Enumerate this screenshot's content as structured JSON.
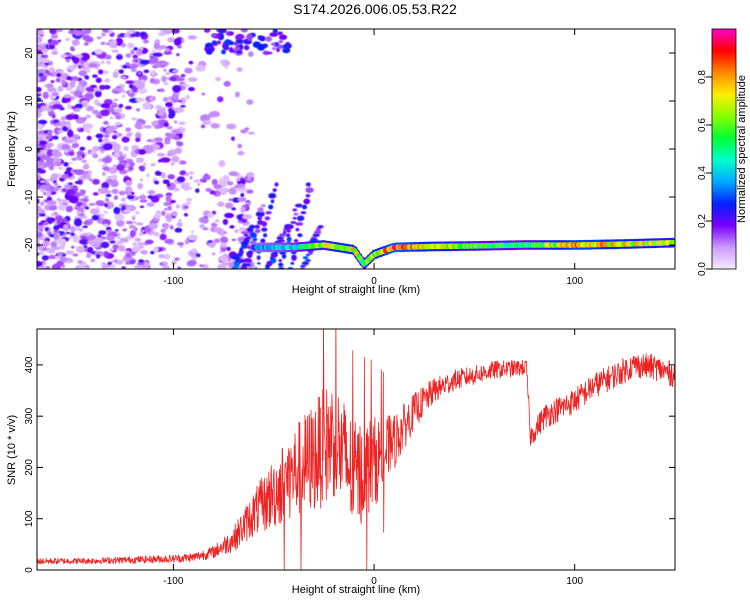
{
  "title": "S174.2026.006.05.53.R22",
  "chart_data": [
    {
      "type": "heatmap",
      "xlabel": "Height of straight line (km)",
      "ylabel": "Frequency (Hz)",
      "xlim": [
        -168,
        150
      ],
      "ylim": [
        -25,
        25
      ],
      "x_ticks": [
        -100,
        0,
        100
      ],
      "x_tick_labels": [
        "-100",
        "0",
        "100"
      ],
      "y_ticks": [
        -20,
        -10,
        0,
        10,
        20
      ],
      "y_tick_labels": [
        "-20",
        "-10",
        "0",
        "10",
        "20"
      ],
      "colorbar": {
        "label": "Normalized spectral amplitude",
        "range": [
          0,
          1
        ],
        "ticks": [
          0.0,
          0.2,
          0.4,
          0.6,
          0.8
        ],
        "tick_labels": [
          "0.0",
          "0.2",
          "0.4",
          "0.6",
          "0.8"
        ],
        "colors": [
          "#f5ecff",
          "#cc99ff",
          "#7700ff",
          "#0022ff",
          "#00aaff",
          "#00ffcc",
          "#00ff33",
          "#88ff00",
          "#ffee00",
          "#ff8800",
          "#ff0000",
          "#ff00cc"
        ]
      },
      "noise_region": {
        "x": [
          -168,
          -60
        ],
        "freq": [
          -25,
          25
        ],
        "typical_amplitude": 0.15
      },
      "upper_streak": {
        "x": [
          -84,
          -42
        ],
        "freq": [
          20,
          25
        ],
        "typical_amplitude": 0.25
      },
      "oblique_streaks": {
        "x": [
          -70,
          -30
        ],
        "freq_start": -25,
        "freq_end": -3
      },
      "signal_band": [
        {
          "x": -60,
          "freq": -20.5,
          "amplitude": 0.35
        },
        {
          "x": -40,
          "freq": -20.5,
          "amplitude": 0.45
        },
        {
          "x": -25,
          "freq": -20.0,
          "amplitude": 0.7
        },
        {
          "x": -10,
          "freq": -21.0,
          "amplitude": 0.75
        },
        {
          "x": -5,
          "freq": -24.0,
          "amplitude": 0.6
        },
        {
          "x": 0,
          "freq": -22.0,
          "amplitude": 0.7
        },
        {
          "x": 10,
          "freq": -20.5,
          "amplitude": 0.9
        },
        {
          "x": 30,
          "freq": -20.3,
          "amplitude": 0.75
        },
        {
          "x": 50,
          "freq": -20.2,
          "amplitude": 0.6
        },
        {
          "x": 75,
          "freq": -20.0,
          "amplitude": 0.55
        },
        {
          "x": 100,
          "freq": -20.0,
          "amplitude": 0.85
        },
        {
          "x": 125,
          "freq": -19.8,
          "amplitude": 0.75
        },
        {
          "x": 150,
          "freq": -19.5,
          "amplitude": 0.7
        }
      ]
    },
    {
      "type": "line",
      "xlabel": "Height of straight line (km)",
      "ylabel": "SNR (10 * v/v)",
      "xlim": [
        -168,
        150
      ],
      "ylim": [
        0,
        470
      ],
      "x_ticks": [
        -100,
        0,
        100
      ],
      "x_tick_labels": [
        "-100",
        "0",
        "100"
      ],
      "y_ticks": [
        0,
        100,
        200,
        300,
        400
      ],
      "y_tick_labels": [
        "0",
        "100",
        "200",
        "300",
        "400"
      ],
      "color": "#ee2222",
      "x": [
        -168,
        -140,
        -120,
        -100,
        -90,
        -80,
        -70,
        -60,
        -50,
        -40,
        -30,
        -20,
        -10,
        0,
        5,
        10,
        20,
        30,
        40,
        60,
        76,
        78,
        85,
        100,
        110,
        120,
        130,
        140,
        150
      ],
      "y": [
        17,
        18,
        20,
        22,
        25,
        35,
        60,
        110,
        150,
        190,
        220,
        260,
        180,
        210,
        230,
        250,
        310,
        350,
        370,
        390,
        395,
        260,
        300,
        330,
        360,
        380,
        400,
        395,
        380
      ],
      "noise_amplitude": [
        6,
        6,
        7,
        8,
        9,
        12,
        25,
        45,
        70,
        90,
        110,
        120,
        110,
        90,
        70,
        55,
        35,
        25,
        20,
        18,
        15,
        20,
        25,
        25,
        25,
        25,
        25,
        25,
        25
      ]
    }
  ]
}
